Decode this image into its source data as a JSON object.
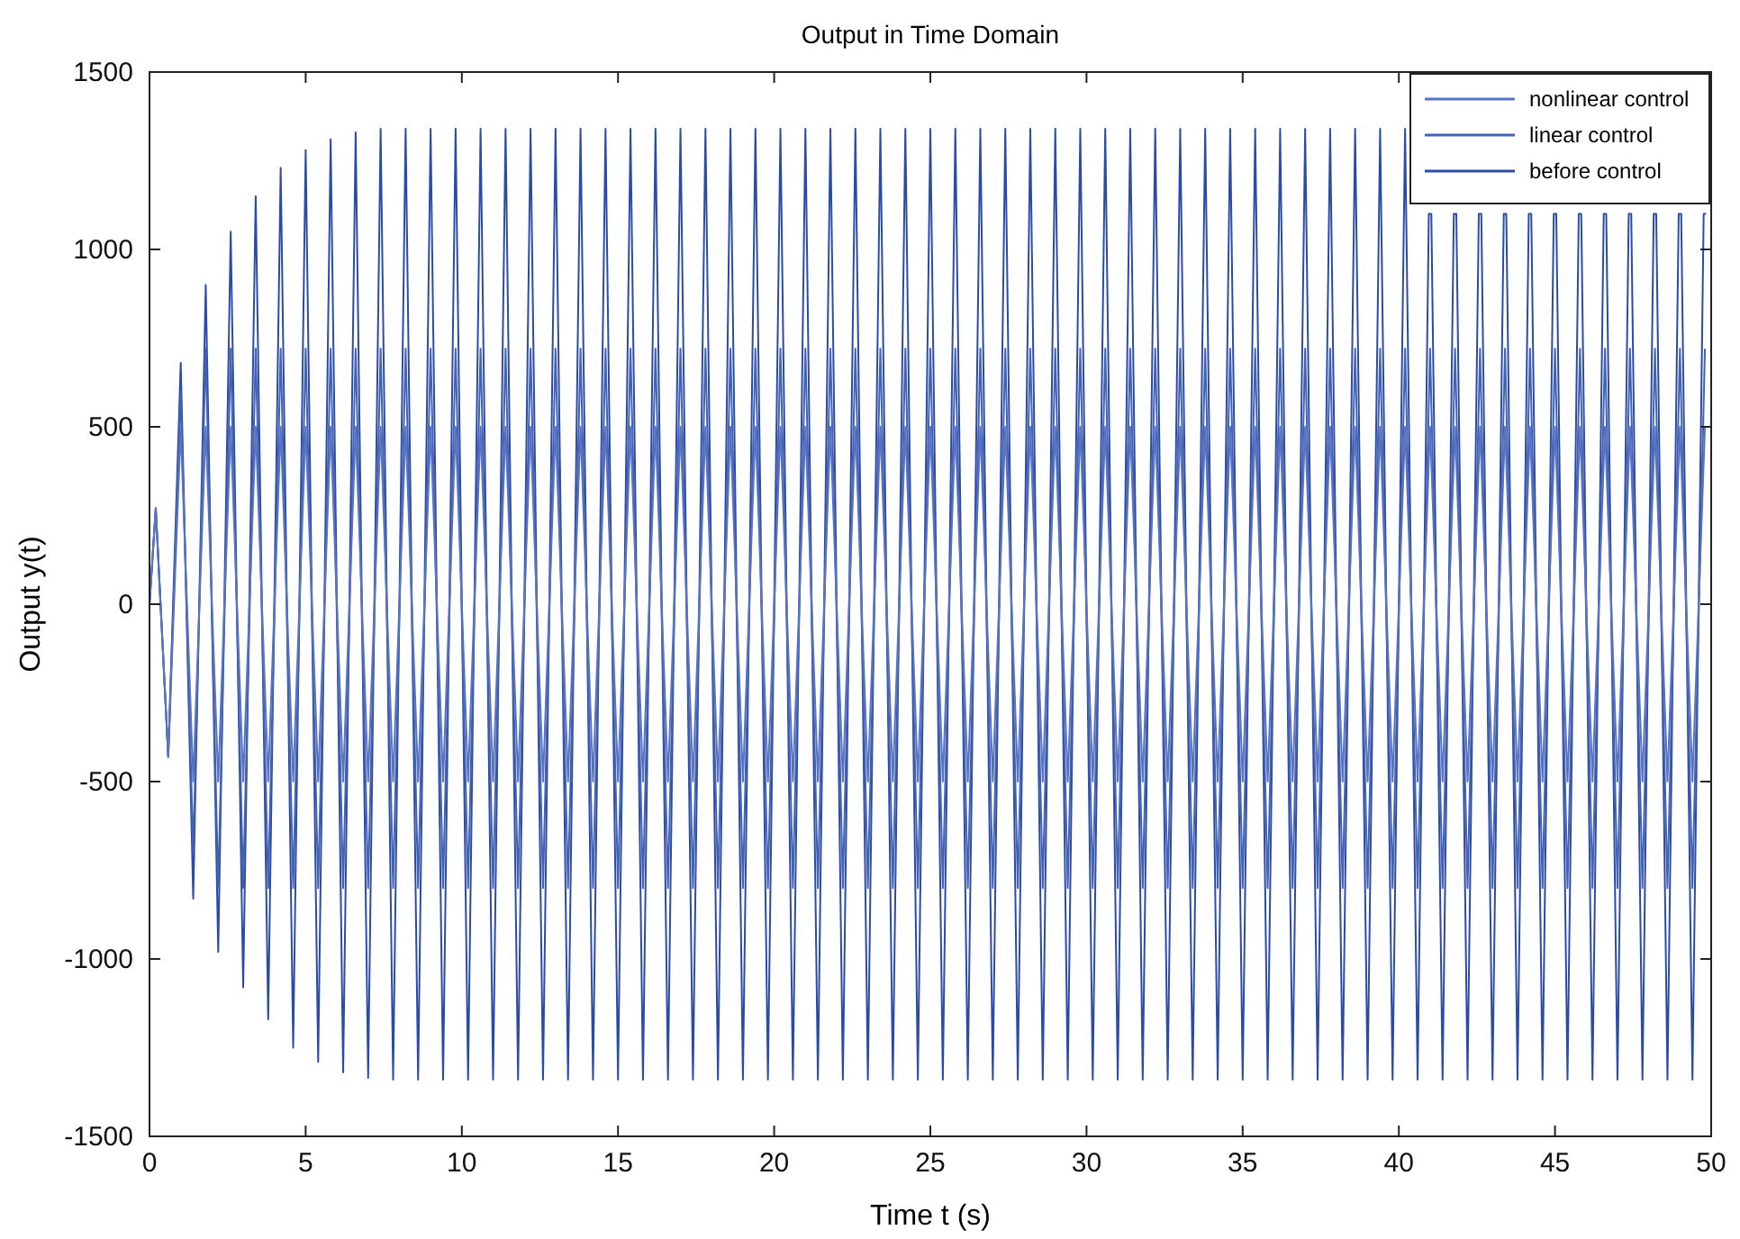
{
  "chart_data": {
    "type": "line",
    "title": "Output in Time Domain",
    "xlabel": "Time t (s)",
    "ylabel": "Output y(t)",
    "xlim": [
      0,
      50
    ],
    "ylim": [
      -1500,
      1500
    ],
    "xticks": [
      0,
      5,
      10,
      15,
      20,
      25,
      30,
      35,
      40,
      45,
      50
    ],
    "yticks": [
      -1500,
      -1000,
      -500,
      0,
      500,
      1000,
      1500
    ],
    "legend": "top right",
    "line_style": "solid",
    "x": [
      0,
      0.2,
      0.6,
      1,
      1.4,
      1.8,
      2.2,
      2.6,
      3,
      3.4,
      3.8,
      4.2,
      4.6,
      5,
      5.4,
      5.8,
      6.2,
      6.6,
      7,
      7.4,
      7.8,
      8.2,
      8.6,
      9,
      9.4,
      9.8,
      10.2,
      10.6,
      11,
      11.4,
      11.8,
      12.2,
      12.6,
      13,
      13.4,
      13.8,
      14.2,
      14.6,
      15,
      15.4,
      15.8,
      16.2,
      16.6,
      17,
      17.4,
      17.8,
      18.2,
      18.6,
      19,
      19.4,
      19.8,
      20.2,
      20.6,
      21,
      21.4,
      21.8,
      22.2,
      22.6,
      23,
      23.4,
      23.8,
      24.2,
      24.6,
      25,
      25.4,
      25.8,
      26.2,
      26.6,
      27,
      27.4,
      27.8,
      28.2,
      28.6,
      29,
      29.4,
      29.8,
      30.2,
      30.6,
      31,
      31.4,
      31.8,
      32.2,
      32.6,
      33,
      33.4,
      33.8,
      34.2,
      34.6,
      35,
      35.4,
      35.8,
      36.2,
      36.6,
      37,
      37.4,
      37.8,
      38.2,
      38.6,
      39,
      39.4,
      39.8,
      40.2,
      40.6,
      41,
      41.4,
      41.8,
      42.2,
      42.6,
      43,
      43.4,
      43.8,
      44.2,
      44.6,
      45,
      45.4,
      45.8,
      46.2,
      46.6,
      47,
      47.4,
      47.8,
      48.2,
      48.6,
      49,
      49.4,
      49.8
    ],
    "series": [
      {
        "name": "nonlinear control",
        "color": "#5a73c0",
        "values": [
          0,
          270,
          -430,
          500,
          -500,
          500,
          -500,
          500,
          -500,
          500,
          -500,
          500,
          -500,
          500,
          -500,
          500,
          -500,
          500,
          -500,
          500,
          -500,
          500,
          -500,
          500,
          -500,
          500,
          -500,
          500,
          -500,
          500,
          -500,
          500,
          -500,
          500,
          -500,
          500,
          -500,
          500,
          -500,
          500,
          -500,
          500,
          -500,
          500,
          -500,
          500,
          -500,
          500,
          -500,
          500,
          -500,
          500,
          -500,
          500,
          -500,
          500,
          -500,
          500,
          -500,
          500,
          -500,
          500,
          -500,
          500,
          -500,
          500,
          -500,
          500,
          -500,
          500,
          -500,
          500,
          -500,
          500,
          -500,
          500,
          -500,
          500,
          -500,
          500,
          -500,
          500,
          -500,
          500,
          -500,
          500,
          -500,
          500,
          -500,
          500,
          -500,
          500,
          -500,
          500,
          -500,
          500,
          -500,
          500,
          -500,
          500,
          -500,
          500,
          -500,
          500,
          -500,
          500,
          -500,
          500,
          -500,
          500,
          -500,
          500,
          -500,
          500,
          -500,
          500,
          -500,
          500,
          -500,
          500,
          -500,
          500,
          -500,
          500,
          -500,
          500
        ]
      },
      {
        "name": "linear control",
        "color": "#4262b2",
        "values": [
          0,
          270,
          -430,
          600,
          -700,
          720,
          -800,
          720,
          -800,
          720,
          -800,
          720,
          -800,
          720,
          -800,
          720,
          -800,
          720,
          -800,
          720,
          -800,
          720,
          -800,
          720,
          -800,
          720,
          -800,
          720,
          -800,
          720,
          -800,
          720,
          -800,
          720,
          -800,
          720,
          -800,
          720,
          -800,
          720,
          -800,
          720,
          -800,
          720,
          -800,
          720,
          -800,
          720,
          -800,
          720,
          -800,
          720,
          -800,
          720,
          -800,
          720,
          -800,
          720,
          -800,
          720,
          -800,
          720,
          -800,
          720,
          -800,
          720,
          -800,
          720,
          -800,
          720,
          -800,
          720,
          -800,
          720,
          -800,
          720,
          -800,
          720,
          -800,
          720,
          -800,
          720,
          -800,
          720,
          -800,
          720,
          -800,
          720,
          -800,
          720,
          -800,
          720,
          -800,
          720,
          -800,
          720,
          -800,
          720,
          -800,
          720,
          -800,
          720,
          -800,
          720,
          -800,
          720,
          -800,
          720,
          -800,
          720,
          -800,
          720,
          -800,
          720,
          -800,
          720,
          -800,
          720,
          -800,
          720,
          -800,
          720,
          -800,
          720,
          -800,
          720
        ]
      },
      {
        "name": "before control",
        "color": "#2c4ba8",
        "x": [
          0,
          0.2,
          0.6,
          1,
          1.4,
          1.8,
          2.2,
          2.6,
          3,
          3.4,
          3.8,
          4.2,
          4.6,
          5,
          5.4,
          5.8,
          6.2,
          6.6,
          7,
          7.4,
          7.8,
          8.2,
          8.6,
          9,
          9.4,
          9.8,
          10.2,
          10.6,
          11,
          11.4,
          11.8,
          12.2,
          12.6,
          13,
          13.4,
          13.8,
          14.2,
          14.6,
          15,
          15.4,
          15.8,
          16.2,
          16.6,
          17,
          17.4,
          17.8,
          18.2,
          18.6,
          19,
          19.4,
          19.8,
          20.2,
          20.6,
          21,
          21.4,
          21.8,
          22.2,
          22.6,
          23,
          23.4,
          23.8,
          24.2,
          24.6,
          25,
          25.4,
          25.8,
          26.2,
          26.6,
          27,
          27.4,
          27.8,
          28.2,
          28.6,
          29,
          29.4,
          29.8,
          30.2,
          30.6,
          31,
          31.4,
          31.8,
          32.2,
          32.6,
          33,
          33.4,
          33.8,
          34.2,
          34.6,
          35,
          35.4,
          35.8,
          36.2,
          36.6,
          37,
          37.4,
          37.8,
          38.2,
          38.6,
          39,
          39.4,
          39.8,
          40.2,
          40.6,
          40.96,
          41.04,
          41.4,
          41.76,
          41.84,
          42.2,
          42.56,
          42.64,
          43,
          43.36,
          43.44,
          43.8,
          44.16,
          44.24,
          44.6,
          44.96,
          45.04,
          45.4,
          45.76,
          45.84,
          46.2,
          46.56,
          46.64,
          47,
          47.36,
          47.44,
          47.8,
          48.16,
          48.24,
          48.6,
          48.96,
          49.04,
          49.4,
          49.76,
          49.84
        ],
        "values": [
          0,
          270,
          -430,
          680,
          -830,
          900,
          -980,
          1050,
          -1080,
          1150,
          -1170,
          1230,
          -1250,
          1280,
          -1290,
          1310,
          -1320,
          1330,
          -1335,
          1340,
          -1340,
          1340,
          -1340,
          1340,
          -1340,
          1340,
          -1340,
          1340,
          -1340,
          1340,
          -1340,
          1340,
          -1340,
          1340,
          -1340,
          1340,
          -1340,
          1340,
          -1340,
          1340,
          -1340,
          1340,
          -1340,
          1340,
          -1340,
          1340,
          -1340,
          1340,
          -1340,
          1340,
          -1340,
          1340,
          -1340,
          1340,
          -1340,
          1340,
          -1340,
          1340,
          -1340,
          1340,
          -1340,
          1340,
          -1340,
          1340,
          -1340,
          1340,
          -1340,
          1340,
          -1340,
          1340,
          -1340,
          1340,
          -1340,
          1340,
          -1340,
          1340,
          -1340,
          1340,
          -1340,
          1340,
          -1340,
          1340,
          -1340,
          1340,
          -1340,
          1340,
          -1340,
          1340,
          -1340,
          1340,
          -1340,
          1340,
          -1340,
          1340,
          -1340,
          1340,
          -1340,
          1340,
          -1340,
          1340,
          -1340,
          1340,
          -1340,
          1100,
          1100,
          -1340,
          1100,
          1100,
          -1340,
          1100,
          1100,
          -1340,
          1100,
          1100,
          -1340,
          1100,
          1100,
          -1340,
          1100,
          1100,
          -1340,
          1100,
          1100,
          -1340,
          1100,
          1100,
          -1340,
          1100,
          1100,
          -1340,
          1100,
          1100,
          -1340,
          1100,
          1100,
          -1340,
          1100,
          1100
        ]
      }
    ]
  }
}
